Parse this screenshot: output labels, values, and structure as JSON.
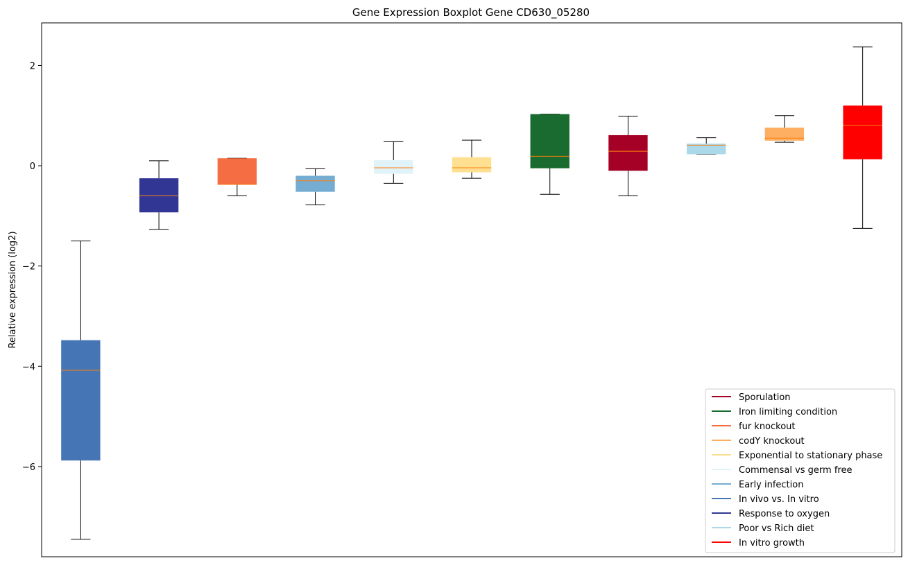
{
  "chart_data": {
    "type": "box",
    "title": "Gene Expression Boxplot Gene CD630_05280",
    "ylabel": "Relative expression (log2)",
    "xlabel": "",
    "ylim": [
      -7.8,
      2.85
    ],
    "yticks": [
      -6,
      -4,
      -2,
      0,
      2
    ],
    "grid": false,
    "legend_position": "lower-right",
    "median_color": "#ff7f0e",
    "boxes": [
      {
        "whisker_low": -7.45,
        "q1": -5.88,
        "median": -4.08,
        "q3": -3.48,
        "whisker_high": -1.5,
        "color": "#4575b4"
      },
      {
        "whisker_low": -1.27,
        "q1": -0.93,
        "median": -0.6,
        "q3": -0.25,
        "whisker_high": 0.1,
        "color": "#313695"
      },
      {
        "whisker_low": -0.6,
        "q1": -0.38,
        "median": -0.37,
        "q3": 0.15,
        "whisker_high": 0.15,
        "color": "#f46d43"
      },
      {
        "whisker_low": -0.78,
        "q1": -0.52,
        "median": -0.3,
        "q3": -0.2,
        "whisker_high": -0.06,
        "color": "#74add1"
      },
      {
        "whisker_low": -0.35,
        "q1": -0.16,
        "median": -0.04,
        "q3": 0.11,
        "whisker_high": 0.48,
        "color": "#e0f3f8"
      },
      {
        "whisker_low": -0.25,
        "q1": -0.13,
        "median": -0.04,
        "q3": 0.17,
        "whisker_high": 0.51,
        "color": "#fee090"
      },
      {
        "whisker_low": -0.57,
        "q1": -0.05,
        "median": 0.19,
        "q3": 1.03,
        "whisker_high": 1.03,
        "color": "#1a6b2f"
      },
      {
        "whisker_low": -0.6,
        "q1": -0.1,
        "median": 0.29,
        "q3": 0.61,
        "whisker_high": 0.99,
        "color": "#a50026"
      },
      {
        "whisker_low": 0.23,
        "q1": 0.23,
        "median": 0.41,
        "q3": 0.44,
        "whisker_high": 0.56,
        "color": "#abd9e9"
      },
      {
        "whisker_low": 0.47,
        "q1": 0.5,
        "median": 0.55,
        "q3": 0.76,
        "whisker_high": 1.0,
        "color": "#fdae61"
      },
      {
        "whisker_low": -1.25,
        "q1": 0.13,
        "median": 0.81,
        "q3": 1.2,
        "whisker_high": 2.37,
        "color": "#ff0000"
      }
    ],
    "legend": [
      {
        "label": "Sporulation",
        "color": "#a50026"
      },
      {
        "label": "Iron limiting condition",
        "color": "#1a6b2f"
      },
      {
        "label": "fur knockout",
        "color": "#f46d43"
      },
      {
        "label": "codY knockout",
        "color": "#fdae61"
      },
      {
        "label": "Exponential to stationary phase",
        "color": "#fee090"
      },
      {
        "label": "Commensal vs germ free",
        "color": "#e0f3f8"
      },
      {
        "label": "Early infection",
        "color": "#74add1"
      },
      {
        "label": "In vivo vs. In vitro",
        "color": "#4575b4"
      },
      {
        "label": "Response to oxygen",
        "color": "#313695"
      },
      {
        "label": "Poor vs Rich diet",
        "color": "#abd9e9"
      },
      {
        "label": "In vitro growth",
        "color": "#ff0000"
      }
    ]
  }
}
